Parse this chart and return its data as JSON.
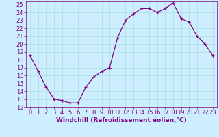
{
  "x": [
    0,
    1,
    2,
    3,
    4,
    5,
    6,
    7,
    8,
    9,
    10,
    11,
    12,
    13,
    14,
    15,
    16,
    17,
    18,
    19,
    20,
    21,
    22,
    23
  ],
  "y": [
    18.5,
    16.5,
    14.5,
    13.0,
    12.8,
    12.5,
    12.5,
    14.5,
    15.8,
    16.5,
    17.0,
    20.8,
    23.0,
    23.8,
    24.5,
    24.5,
    24.0,
    24.5,
    25.2,
    23.2,
    22.8,
    21.0,
    20.0,
    18.5
  ],
  "line_color": "#800080",
  "marker": "+",
  "bg_color": "#cceeff",
  "grid_color": "#aadddd",
  "xlabel": "Windchill (Refroidissement éolien,°C)",
  "xlabel_color": "#800080",
  "tick_color": "#800080",
  "xlim": [
    -0.5,
    23.5
  ],
  "ylim": [
    12,
    25.4
  ],
  "yticks": [
    12,
    13,
    14,
    15,
    16,
    17,
    18,
    19,
    20,
    21,
    22,
    23,
    24,
    25
  ],
  "xticks": [
    0,
    1,
    2,
    3,
    4,
    5,
    6,
    7,
    8,
    9,
    10,
    11,
    12,
    13,
    14,
    15,
    16,
    17,
    18,
    19,
    20,
    21,
    22,
    23
  ],
  "xlabel_fontsize": 6.5,
  "tick_fontsize": 6
}
